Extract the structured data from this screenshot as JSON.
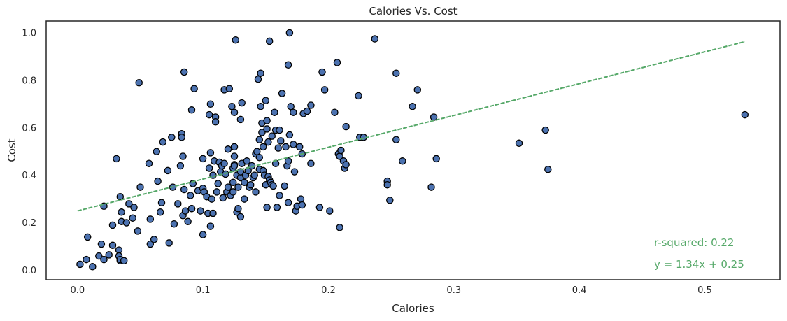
{
  "chart_data": {
    "type": "scatter",
    "title": "Calories Vs. Cost",
    "xlabel": "Calories",
    "ylabel": "Cost",
    "xlim": [
      -0.025,
      0.56
    ],
    "ylim": [
      -0.04,
      1.05
    ],
    "xticks": [
      0.0,
      0.1,
      0.2,
      0.3,
      0.4,
      0.5
    ],
    "xtick_labels": [
      "0.0",
      "0.1",
      "0.2",
      "0.3",
      "0.4",
      "0.5"
    ],
    "yticks": [
      0.0,
      0.2,
      0.4,
      0.6,
      0.8,
      1.0
    ],
    "ytick_labels": [
      "0.0",
      "0.2",
      "0.4",
      "0.6",
      "0.8",
      "1.0"
    ],
    "grid": false,
    "point_color": "#4c72b0",
    "point_edge_color": "#000000",
    "line_color": "#55a868",
    "fit": {
      "slope": 1.34,
      "intercept": 0.25,
      "x_start": 0.0,
      "x_end": 0.532
    },
    "annotations": {
      "r_squared": "r-squared: 0.22",
      "equation": "y = 1.34x + 0.25"
    },
    "points": [
      [
        0.002,
        0.025
      ],
      [
        0.007,
        0.045
      ],
      [
        0.008,
        0.14
      ],
      [
        0.012,
        0.015
      ],
      [
        0.017,
        0.06
      ],
      [
        0.019,
        0.11
      ],
      [
        0.021,
        0.045
      ],
      [
        0.021,
        0.27
      ],
      [
        0.025,
        0.065
      ],
      [
        0.028,
        0.105
      ],
      [
        0.028,
        0.19
      ],
      [
        0.031,
        0.47
      ],
      [
        0.033,
        0.085
      ],
      [
        0.033,
        0.06
      ],
      [
        0.034,
        0.04
      ],
      [
        0.034,
        0.045
      ],
      [
        0.035,
        0.245
      ],
      [
        0.034,
        0.31
      ],
      [
        0.035,
        0.205
      ],
      [
        0.037,
        0.04
      ],
      [
        0.039,
        0.2
      ],
      [
        0.041,
        0.28
      ],
      [
        0.044,
        0.22
      ],
      [
        0.045,
        0.265
      ],
      [
        0.048,
        0.165
      ],
      [
        0.049,
        0.79
      ],
      [
        0.05,
        0.35
      ],
      [
        0.057,
        0.45
      ],
      [
        0.058,
        0.215
      ],
      [
        0.058,
        0.11
      ],
      [
        0.061,
        0.13
      ],
      [
        0.063,
        0.5
      ],
      [
        0.064,
        0.375
      ],
      [
        0.066,
        0.245
      ],
      [
        0.067,
        0.285
      ],
      [
        0.068,
        0.54
      ],
      [
        0.072,
        0.42
      ],
      [
        0.073,
        0.115
      ],
      [
        0.075,
        0.56
      ],
      [
        0.076,
        0.35
      ],
      [
        0.077,
        0.195
      ],
      [
        0.08,
        0.28
      ],
      [
        0.082,
        0.44
      ],
      [
        0.083,
        0.575
      ],
      [
        0.083,
        0.56
      ],
      [
        0.084,
        0.23
      ],
      [
        0.084,
        0.48
      ],
      [
        0.085,
        0.835
      ],
      [
        0.085,
        0.34
      ],
      [
        0.086,
        0.25
      ],
      [
        0.088,
        0.205
      ],
      [
        0.09,
        0.315
      ],
      [
        0.091,
        0.26
      ],
      [
        0.091,
        0.675
      ],
      [
        0.091,
        0.26
      ],
      [
        0.092,
        0.365
      ],
      [
        0.093,
        0.765
      ],
      [
        0.096,
        0.335
      ],
      [
        0.098,
        0.25
      ],
      [
        0.1,
        0.15
      ],
      [
        0.1,
        0.47
      ],
      [
        0.1,
        0.345
      ],
      [
        0.101,
        0.33
      ],
      [
        0.103,
        0.31
      ],
      [
        0.104,
        0.24
      ],
      [
        0.105,
        0.655
      ],
      [
        0.105,
        0.43
      ],
      [
        0.106,
        0.495
      ],
      [
        0.106,
        0.185
      ],
      [
        0.106,
        0.7
      ],
      [
        0.107,
        0.3
      ],
      [
        0.108,
        0.24
      ],
      [
        0.108,
        0.4
      ],
      [
        0.109,
        0.46
      ],
      [
        0.11,
        0.645
      ],
      [
        0.11,
        0.625
      ],
      [
        0.111,
        0.33
      ],
      [
        0.112,
        0.365
      ],
      [
        0.113,
        0.455
      ],
      [
        0.114,
        0.415
      ],
      [
        0.115,
        0.44
      ],
      [
        0.116,
        0.305
      ],
      [
        0.117,
        0.76
      ],
      [
        0.117,
        0.45
      ],
      [
        0.118,
        0.405
      ],
      [
        0.119,
        0.33
      ],
      [
        0.12,
        0.51
      ],
      [
        0.12,
        0.35
      ],
      [
        0.121,
        0.765
      ],
      [
        0.122,
        0.315
      ],
      [
        0.123,
        0.69
      ],
      [
        0.124,
        0.33
      ],
      [
        0.124,
        0.37
      ],
      [
        0.124,
        0.43
      ],
      [
        0.125,
        0.445
      ],
      [
        0.125,
        0.665
      ],
      [
        0.125,
        0.44
      ],
      [
        0.125,
        0.52
      ],
      [
        0.125,
        0.48
      ],
      [
        0.126,
        0.97
      ],
      [
        0.127,
        0.245
      ],
      [
        0.127,
        0.4
      ],
      [
        0.128,
        0.35
      ],
      [
        0.128,
        0.26
      ],
      [
        0.13,
        0.225
      ],
      [
        0.13,
        0.635
      ],
      [
        0.13,
        0.39
      ],
      [
        0.13,
        0.415
      ],
      [
        0.131,
        0.45
      ],
      [
        0.131,
        0.705
      ],
      [
        0.133,
        0.37
      ],
      [
        0.133,
        0.3
      ],
      [
        0.134,
        0.4
      ],
      [
        0.135,
        0.46
      ],
      [
        0.136,
        0.42
      ],
      [
        0.137,
        0.35
      ],
      [
        0.138,
        0.36
      ],
      [
        0.139,
        0.44
      ],
      [
        0.14,
        0.39
      ],
      [
        0.141,
        0.4
      ],
      [
        0.142,
        0.33
      ],
      [
        0.142,
        0.49
      ],
      [
        0.143,
        0.5
      ],
      [
        0.144,
        0.805
      ],
      [
        0.145,
        0.55
      ],
      [
        0.145,
        0.475
      ],
      [
        0.145,
        0.425
      ],
      [
        0.146,
        0.69
      ],
      [
        0.146,
        0.83
      ],
      [
        0.147,
        0.58
      ],
      [
        0.147,
        0.62
      ],
      [
        0.148,
        0.52
      ],
      [
        0.148,
        0.42
      ],
      [
        0.149,
        0.4
      ],
      [
        0.15,
        0.36
      ],
      [
        0.15,
        0.715
      ],
      [
        0.151,
        0.595
      ],
      [
        0.151,
        0.63
      ],
      [
        0.151,
        0.265
      ],
      [
        0.152,
        0.395
      ],
      [
        0.152,
        0.54
      ],
      [
        0.153,
        0.965
      ],
      [
        0.153,
        0.38
      ],
      [
        0.154,
        0.37
      ],
      [
        0.155,
        0.565
      ],
      [
        0.155,
        0.36
      ],
      [
        0.156,
        0.355
      ],
      [
        0.157,
        0.665
      ],
      [
        0.158,
        0.59
      ],
      [
        0.158,
        0.45
      ],
      [
        0.159,
        0.265
      ],
      [
        0.16,
        0.515
      ],
      [
        0.161,
        0.59
      ],
      [
        0.161,
        0.315
      ],
      [
        0.162,
        0.545
      ],
      [
        0.163,
        0.745
      ],
      [
        0.165,
        0.355
      ],
      [
        0.166,
        0.52
      ],
      [
        0.167,
        0.44
      ],
      [
        0.168,
        0.285
      ],
      [
        0.168,
        0.865
      ],
      [
        0.168,
        0.46
      ],
      [
        0.169,
        1.0
      ],
      [
        0.169,
        0.57
      ],
      [
        0.17,
        0.69
      ],
      [
        0.172,
        0.665
      ],
      [
        0.172,
        0.53
      ],
      [
        0.173,
        0.415
      ],
      [
        0.174,
        0.25
      ],
      [
        0.175,
        0.27
      ],
      [
        0.177,
        0.52
      ],
      [
        0.178,
        0.3
      ],
      [
        0.179,
        0.275
      ],
      [
        0.179,
        0.49
      ],
      [
        0.18,
        0.66
      ],
      [
        0.183,
        0.67
      ],
      [
        0.186,
        0.695
      ],
      [
        0.186,
        0.45
      ],
      [
        0.193,
        0.265
      ],
      [
        0.195,
        0.835
      ],
      [
        0.197,
        0.76
      ],
      [
        0.201,
        0.25
      ],
      [
        0.205,
        0.665
      ],
      [
        0.207,
        0.875
      ],
      [
        0.208,
        0.49
      ],
      [
        0.209,
        0.18
      ],
      [
        0.209,
        0.48
      ],
      [
        0.21,
        0.505
      ],
      [
        0.212,
        0.46
      ],
      [
        0.213,
        0.43
      ],
      [
        0.214,
        0.605
      ],
      [
        0.214,
        0.445
      ],
      [
        0.224,
        0.735
      ],
      [
        0.225,
        0.56
      ],
      [
        0.228,
        0.56
      ],
      [
        0.237,
        0.975
      ],
      [
        0.247,
        0.375
      ],
      [
        0.247,
        0.36
      ],
      [
        0.249,
        0.295
      ],
      [
        0.254,
        0.83
      ],
      [
        0.254,
        0.55
      ],
      [
        0.259,
        0.46
      ],
      [
        0.267,
        0.69
      ],
      [
        0.271,
        0.76
      ],
      [
        0.282,
        0.35
      ],
      [
        0.284,
        0.645
      ],
      [
        0.286,
        0.47
      ],
      [
        0.352,
        0.535
      ],
      [
        0.373,
        0.59
      ],
      [
        0.375,
        0.425
      ],
      [
        0.532,
        0.655
      ]
    ]
  }
}
